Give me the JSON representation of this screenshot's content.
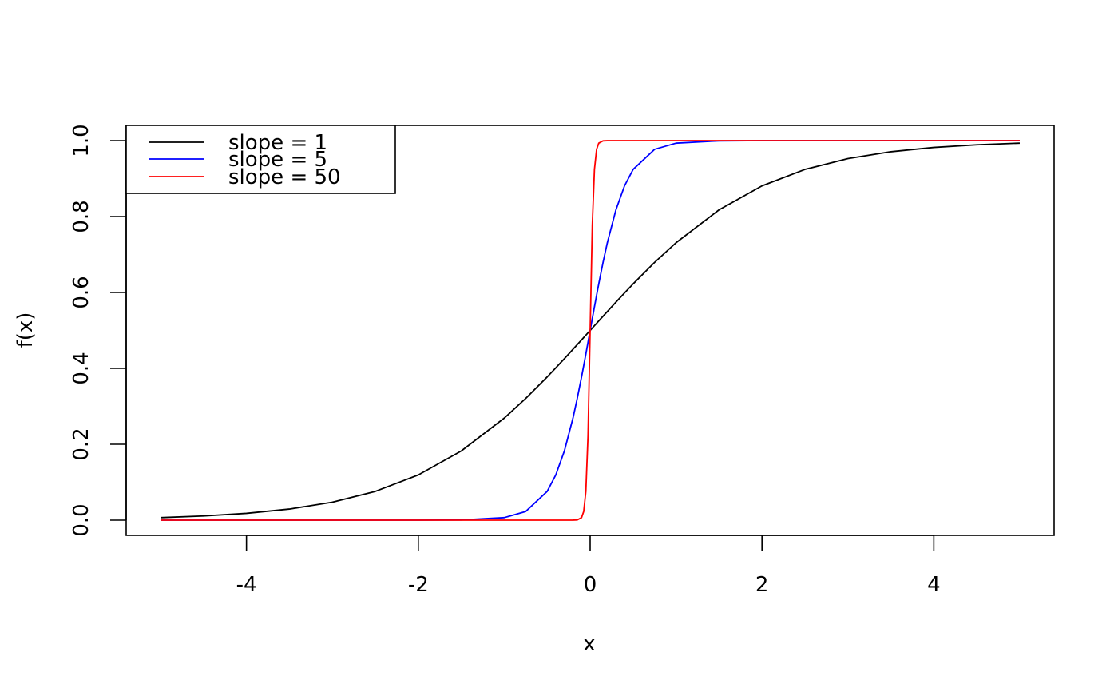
{
  "chart_data": {
    "type": "line",
    "xlabel": "x",
    "ylabel": "f(x)",
    "xlim": [
      -5.4,
      5.4
    ],
    "ylim": [
      -0.04,
      1.04
    ],
    "x_ticks": [
      -4,
      -2,
      0,
      2,
      4
    ],
    "x_tick_labels": [
      "-4",
      "-2",
      "0",
      "2",
      "4"
    ],
    "y_ticks": [
      0.0,
      0.2,
      0.4,
      0.6,
      0.8,
      1.0
    ],
    "y_tick_labels": [
      "0.0",
      "0.2",
      "0.4",
      "0.6",
      "0.8",
      "1.0"
    ],
    "grid": false,
    "legend": {
      "position": "top-left"
    },
    "x": [
      -5.0,
      -4.5,
      -4.0,
      -3.5,
      -3.0,
      -2.5,
      -2.0,
      -1.5,
      -1.0,
      -0.75,
      -0.5,
      -0.4,
      -0.3,
      -0.2,
      -0.15,
      -0.1,
      -0.075,
      -0.05,
      -0.025,
      0.0,
      0.025,
      0.05,
      0.075,
      0.1,
      0.15,
      0.2,
      0.3,
      0.4,
      0.5,
      0.75,
      1.0,
      1.5,
      2.0,
      2.5,
      3.0,
      3.5,
      4.0,
      4.5,
      5.0
    ],
    "series": [
      {
        "name": "slope = 1",
        "color": "#000000",
        "values": [
          0.0067,
          0.011,
          0.018,
          0.0293,
          0.0474,
          0.0759,
          0.1192,
          0.1824,
          0.2689,
          0.3208,
          0.3775,
          0.4013,
          0.4256,
          0.4502,
          0.4626,
          0.475,
          0.4813,
          0.4875,
          0.4938,
          0.5,
          0.5062,
          0.5125,
          0.5187,
          0.525,
          0.5374,
          0.5498,
          0.5744,
          0.5987,
          0.6225,
          0.6792,
          0.7311,
          0.8176,
          0.8808,
          0.9241,
          0.9526,
          0.9707,
          0.982,
          0.989,
          0.9933
        ]
      },
      {
        "name": "slope = 5",
        "color": "#0000ff",
        "values": [
          0.0,
          0.0,
          0.0,
          0.0,
          0.0,
          0.0,
          0.0,
          0.0006,
          0.0067,
          0.023,
          0.0759,
          0.1192,
          0.1824,
          0.2689,
          0.3208,
          0.3775,
          0.4073,
          0.4378,
          0.4688,
          0.5,
          0.5312,
          0.5622,
          0.5927,
          0.6225,
          0.6792,
          0.7311,
          0.8176,
          0.8808,
          0.9241,
          0.977,
          0.9933,
          0.9994,
          1.0,
          1.0,
          1.0,
          1.0,
          1.0,
          1.0,
          1.0
        ]
      },
      {
        "name": "slope = 50",
        "color": "#ff0000",
        "values": [
          0.0,
          0.0,
          0.0,
          0.0,
          0.0,
          0.0,
          0.0,
          0.0,
          0.0,
          0.0,
          0.0,
          0.0,
          0.0,
          0.0001,
          0.0006,
          0.0067,
          0.023,
          0.0759,
          0.2227,
          0.5,
          0.7773,
          0.9241,
          0.977,
          0.9933,
          0.9994,
          0.9999,
          1.0,
          1.0,
          1.0,
          1.0,
          1.0,
          1.0,
          1.0,
          1.0,
          1.0,
          1.0,
          1.0,
          1.0,
          1.0
        ]
      }
    ]
  }
}
